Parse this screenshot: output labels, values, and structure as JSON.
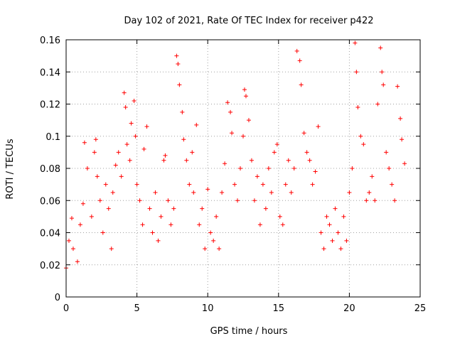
{
  "chart_data": {
    "type": "scatter",
    "title": "Day 102 of 2021, Rate Of TEC Index for receiver p422",
    "xlabel": "GPS time / hours",
    "ylabel": "ROTI / TECUs",
    "xlim": [
      0,
      25
    ],
    "ylim": [
      0,
      0.16
    ],
    "xticks": [
      0,
      5,
      10,
      15,
      20,
      25
    ],
    "xtick_labels": [
      "0",
      "5",
      "10",
      "15",
      "20",
      "25"
    ],
    "yticks": [
      0,
      0.02,
      0.04,
      0.06,
      0.08,
      0.1,
      0.12,
      0.14,
      0.16
    ],
    "ytick_labels": [
      "0",
      "0.02",
      "0.04",
      "0.06",
      "0.08",
      "0.1",
      "0.12",
      "0.14",
      "0.16"
    ],
    "grid": true,
    "marker": "+",
    "series_color": "#ff0000",
    "series": [
      {
        "name": "ROTI",
        "x": [
          0.0,
          0.2,
          0.4,
          0.5,
          0.8,
          1.0,
          1.2,
          1.3,
          1.5,
          1.8,
          2.0,
          2.1,
          2.2,
          2.4,
          2.6,
          2.8,
          3.0,
          3.2,
          3.3,
          3.5,
          3.7,
          3.9,
          4.1,
          4.2,
          4.3,
          4.5,
          4.6,
          4.8,
          4.9,
          5.0,
          5.2,
          5.4,
          5.5,
          5.7,
          5.9,
          6.1,
          6.3,
          6.5,
          6.7,
          6.9,
          7.0,
          7.2,
          7.4,
          7.6,
          7.8,
          7.9,
          8.0,
          8.2,
          8.3,
          8.5,
          8.7,
          8.9,
          9.0,
          9.2,
          9.4,
          9.6,
          9.8,
          10.0,
          10.2,
          10.4,
          10.6,
          10.8,
          11.0,
          11.2,
          11.4,
          11.6,
          11.7,
          11.9,
          12.1,
          12.3,
          12.5,
          12.6,
          12.7,
          12.9,
          13.1,
          13.3,
          13.5,
          13.7,
          13.9,
          14.1,
          14.3,
          14.5,
          14.7,
          14.9,
          15.1,
          15.3,
          15.5,
          15.7,
          15.9,
          16.1,
          16.3,
          16.5,
          16.6,
          16.8,
          17.0,
          17.2,
          17.4,
          17.6,
          17.8,
          18.0,
          18.2,
          18.4,
          18.6,
          18.8,
          19.0,
          19.2,
          19.4,
          19.6,
          19.8,
          20.0,
          20.2,
          20.4,
          20.5,
          20.6,
          20.8,
          21.0,
          21.2,
          21.4,
          21.6,
          21.8,
          22.0,
          22.2,
          22.3,
          22.4,
          22.6,
          22.8,
          23.0,
          23.2,
          23.4,
          23.6,
          23.7,
          23.9
        ],
        "y": [
          0.018,
          0.035,
          0.049,
          0.03,
          0.022,
          0.045,
          0.058,
          0.096,
          0.08,
          0.05,
          0.09,
          0.098,
          0.075,
          0.06,
          0.04,
          0.07,
          0.055,
          0.03,
          0.065,
          0.082,
          0.09,
          0.075,
          0.127,
          0.118,
          0.095,
          0.085,
          0.108,
          0.122,
          0.1,
          0.07,
          0.06,
          0.045,
          0.092,
          0.106,
          0.055,
          0.04,
          0.065,
          0.035,
          0.05,
          0.085,
          0.088,
          0.06,
          0.045,
          0.055,
          0.15,
          0.145,
          0.132,
          0.115,
          0.098,
          0.085,
          0.07,
          0.09,
          0.065,
          0.107,
          0.045,
          0.055,
          0.03,
          0.067,
          0.04,
          0.035,
          0.05,
          0.03,
          0.065,
          0.083,
          0.121,
          0.115,
          0.102,
          0.07,
          0.06,
          0.08,
          0.1,
          0.129,
          0.125,
          0.11,
          0.085,
          0.06,
          0.075,
          0.045,
          0.07,
          0.055,
          0.08,
          0.065,
          0.09,
          0.095,
          0.05,
          0.045,
          0.07,
          0.085,
          0.065,
          0.08,
          0.153,
          0.147,
          0.132,
          0.102,
          0.09,
          0.085,
          0.07,
          0.078,
          0.106,
          0.04,
          0.03,
          0.05,
          0.045,
          0.035,
          0.055,
          0.04,
          0.03,
          0.05,
          0.035,
          0.065,
          0.08,
          0.158,
          0.14,
          0.118,
          0.1,
          0.095,
          0.06,
          0.065,
          0.075,
          0.06,
          0.12,
          0.155,
          0.14,
          0.132,
          0.09,
          0.08,
          0.07,
          0.06,
          0.131,
          0.111,
          0.098,
          0.083
        ]
      }
    ]
  }
}
